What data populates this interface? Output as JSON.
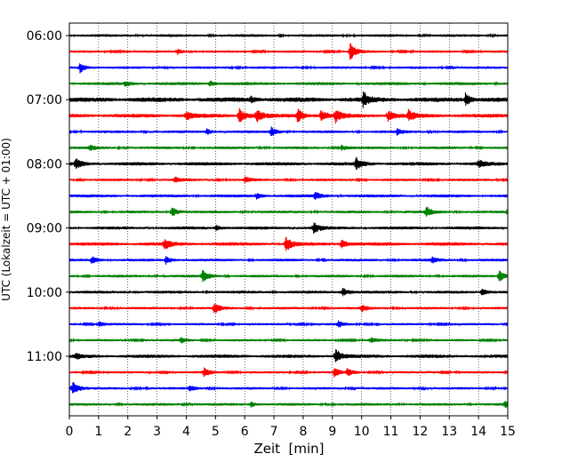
{
  "chart_data": {
    "type": "line",
    "title": "",
    "xlabel": "Zeit  [min]",
    "ylabel": "UTC (Lokalzeit = UTC + 01:00)",
    "xlim": [
      0,
      15
    ],
    "x_ticks": [
      "0",
      "1",
      "2",
      "3",
      "4",
      "5",
      "6",
      "7",
      "8",
      "9",
      "10",
      "11",
      "12",
      "13",
      "14",
      "15"
    ],
    "y_ticks": [
      "06:00",
      "07:00",
      "08:00",
      "09:00",
      "10:00",
      "11:00"
    ],
    "grid": "vertical dotted",
    "trace_colors": [
      "#000000",
      "#ff0000",
      "#0000ff",
      "#008000"
    ],
    "traces": [
      {
        "start": "06:00",
        "color": "#000000",
        "noise": 1.4,
        "events": []
      },
      {
        "start": "06:15",
        "color": "#ff0000",
        "noise": 1.2,
        "events": [
          {
            "t": 3.7,
            "amp": 3
          },
          {
            "t": 9.6,
            "amp": 10
          }
        ]
      },
      {
        "start": "06:30",
        "color": "#0000ff",
        "noise": 1.3,
        "events": [
          {
            "t": 0.35,
            "amp": 6
          }
        ]
      },
      {
        "start": "06:45",
        "color": "#008000",
        "noise": 1.6,
        "events": [
          {
            "t": 1.9,
            "amp": 3
          },
          {
            "t": 4.8,
            "amp": 3
          }
        ]
      },
      {
        "start": "07:00",
        "color": "#000000",
        "noise": 2.4,
        "events": [
          {
            "t": 10.05,
            "amp": 9
          },
          {
            "t": 13.55,
            "amp": 7
          },
          {
            "t": 6.2,
            "amp": 3
          }
        ]
      },
      {
        "start": "07:15",
        "color": "#ff0000",
        "noise": 2.0,
        "events": [
          {
            "t": 4.0,
            "amp": 5
          },
          {
            "t": 5.8,
            "amp": 9
          },
          {
            "t": 6.4,
            "amp": 7
          },
          {
            "t": 7.8,
            "amp": 8
          },
          {
            "t": 8.6,
            "amp": 6
          },
          {
            "t": 9.1,
            "amp": 7
          },
          {
            "t": 10.9,
            "amp": 6
          },
          {
            "t": 11.6,
            "amp": 6
          }
        ]
      },
      {
        "start": "07:30",
        "color": "#0000ff",
        "noise": 1.4,
        "events": [
          {
            "t": 6.9,
            "amp": 5
          },
          {
            "t": 4.7,
            "amp": 3
          },
          {
            "t": 11.2,
            "amp": 3
          }
        ]
      },
      {
        "start": "07:45",
        "color": "#008000",
        "noise": 1.4,
        "events": [
          {
            "t": 0.7,
            "amp": 3
          },
          {
            "t": 9.3,
            "amp": 3
          }
        ]
      },
      {
        "start": "08:00",
        "color": "#000000",
        "noise": 1.8,
        "events": [
          {
            "t": 0.2,
            "amp": 6
          },
          {
            "t": 9.8,
            "amp": 7
          },
          {
            "t": 14.0,
            "amp": 4
          }
        ]
      },
      {
        "start": "08:15",
        "color": "#ff0000",
        "noise": 1.3,
        "events": [
          {
            "t": 3.6,
            "amp": 3
          },
          {
            "t": 6.0,
            "amp": 3
          }
        ]
      },
      {
        "start": "08:30",
        "color": "#0000ff",
        "noise": 1.6,
        "events": [
          {
            "t": 8.4,
            "amp": 4
          },
          {
            "t": 6.4,
            "amp": 3
          }
        ]
      },
      {
        "start": "08:45",
        "color": "#008000",
        "noise": 1.4,
        "events": [
          {
            "t": 3.5,
            "amp": 6
          },
          {
            "t": 12.2,
            "amp": 6
          },
          {
            "t": 15.0,
            "amp": 5
          }
        ]
      },
      {
        "start": "09:00",
        "color": "#000000",
        "noise": 1.6,
        "events": [
          {
            "t": 8.35,
            "amp": 7
          },
          {
            "t": 5.0,
            "amp": 3
          }
        ]
      },
      {
        "start": "09:15",
        "color": "#ff0000",
        "noise": 1.8,
        "events": [
          {
            "t": 3.25,
            "amp": 6
          },
          {
            "t": 7.4,
            "amp": 9
          },
          {
            "t": 9.3,
            "amp": 5
          }
        ]
      },
      {
        "start": "09:30",
        "color": "#0000ff",
        "noise": 1.4,
        "events": [
          {
            "t": 0.75,
            "amp": 4
          },
          {
            "t": 3.3,
            "amp": 4
          },
          {
            "t": 12.4,
            "amp": 3
          }
        ]
      },
      {
        "start": "09:45",
        "color": "#008000",
        "noise": 1.4,
        "events": [
          {
            "t": 4.55,
            "amp": 7
          },
          {
            "t": 14.7,
            "amp": 7
          }
        ]
      },
      {
        "start": "10:00",
        "color": "#000000",
        "noise": 1.5,
        "events": [
          {
            "t": 9.35,
            "amp": 5
          },
          {
            "t": 14.1,
            "amp": 4
          }
        ]
      },
      {
        "start": "10:15",
        "color": "#ff0000",
        "noise": 1.3,
        "events": [
          {
            "t": 4.95,
            "amp": 6
          },
          {
            "t": 10.0,
            "amp": 4
          }
        ]
      },
      {
        "start": "10:30",
        "color": "#0000ff",
        "noise": 1.2,
        "events": [
          {
            "t": 1.0,
            "amp": 3
          },
          {
            "t": 9.2,
            "amp": 3
          }
        ]
      },
      {
        "start": "10:45",
        "color": "#008000",
        "noise": 1.2,
        "events": [
          {
            "t": 3.8,
            "amp": 3
          },
          {
            "t": 10.3,
            "amp": 3
          }
        ]
      },
      {
        "start": "11:00",
        "color": "#000000",
        "noise": 1.8,
        "events": [
          {
            "t": 9.1,
            "amp": 8
          },
          {
            "t": 0.2,
            "amp": 3
          }
        ]
      },
      {
        "start": "11:15",
        "color": "#ff0000",
        "noise": 1.2,
        "events": [
          {
            "t": 4.6,
            "amp": 5
          },
          {
            "t": 9.05,
            "amp": 5
          },
          {
            "t": 9.5,
            "amp": 4
          }
        ]
      },
      {
        "start": "11:30",
        "color": "#0000ff",
        "noise": 1.3,
        "events": [
          {
            "t": 0.1,
            "amp": 9
          },
          {
            "t": 4.1,
            "amp": 3
          }
        ]
      },
      {
        "start": "11:45",
        "color": "#008000",
        "noise": 1.4,
        "events": [
          {
            "t": 6.2,
            "amp": 3
          },
          {
            "t": 14.9,
            "amp": 4
          }
        ]
      }
    ]
  }
}
